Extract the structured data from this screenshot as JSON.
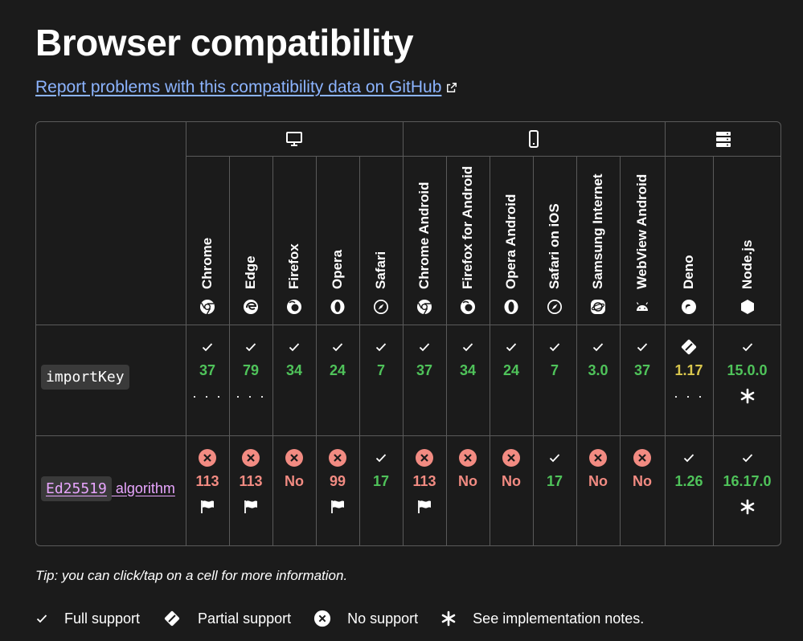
{
  "page_title": "Browser compatibility",
  "report_link": "Report problems with this compatibility data on GitHub",
  "platforms": [
    {
      "name": "desktop",
      "icon": "desktop-icon"
    },
    {
      "name": "mobile",
      "icon": "mobile-icon"
    },
    {
      "name": "server",
      "icon": "server-icon"
    }
  ],
  "browsers": [
    {
      "name": "Chrome",
      "icon": "chrome-icon"
    },
    {
      "name": "Edge",
      "icon": "edge-icon"
    },
    {
      "name": "Firefox",
      "icon": "firefox-icon"
    },
    {
      "name": "Opera",
      "icon": "opera-icon"
    },
    {
      "name": "Safari",
      "icon": "safari-icon"
    },
    {
      "name": "Chrome Android",
      "icon": "chrome-icon"
    },
    {
      "name": "Firefox for Android",
      "icon": "firefox-icon"
    },
    {
      "name": "Opera Android",
      "icon": "opera-icon"
    },
    {
      "name": "Safari on iOS",
      "icon": "safari-icon"
    },
    {
      "name": "Samsung Internet",
      "icon": "samsung-internet-icon"
    },
    {
      "name": "WebView Android",
      "icon": "android-icon"
    },
    {
      "name": "Deno",
      "icon": "deno-icon"
    },
    {
      "name": "Node.js",
      "icon": "nodejs-icon"
    }
  ],
  "features": [
    {
      "code": "importKey",
      "suffix": "",
      "cells": [
        {
          "status": "yes",
          "version": "37",
          "note": "more"
        },
        {
          "status": "yes",
          "version": "79",
          "note": "more"
        },
        {
          "status": "yes",
          "version": "34",
          "note": ""
        },
        {
          "status": "yes",
          "version": "24",
          "note": ""
        },
        {
          "status": "yes",
          "version": "7",
          "note": ""
        },
        {
          "status": "yes",
          "version": "37",
          "note": ""
        },
        {
          "status": "yes",
          "version": "34",
          "note": ""
        },
        {
          "status": "yes",
          "version": "24",
          "note": ""
        },
        {
          "status": "yes",
          "version": "7",
          "note": ""
        },
        {
          "status": "yes",
          "version": "3.0",
          "note": ""
        },
        {
          "status": "yes",
          "version": "37",
          "note": ""
        },
        {
          "status": "partial",
          "version": "1.17",
          "note": "more"
        },
        {
          "status": "yes",
          "version": "15.0.0",
          "note": "asterisk"
        }
      ]
    },
    {
      "code": "Ed25519",
      "suffix": " algorithm",
      "cells": [
        {
          "status": "no",
          "version": "113",
          "note": "flag"
        },
        {
          "status": "no",
          "version": "113",
          "note": "flag"
        },
        {
          "status": "no",
          "version": "No",
          "note": ""
        },
        {
          "status": "no",
          "version": "99",
          "note": "flag"
        },
        {
          "status": "yes",
          "version": "17",
          "note": ""
        },
        {
          "status": "no",
          "version": "113",
          "note": "flag"
        },
        {
          "status": "no",
          "version": "No",
          "note": ""
        },
        {
          "status": "no",
          "version": "No",
          "note": ""
        },
        {
          "status": "yes",
          "version": "17",
          "note": ""
        },
        {
          "status": "no",
          "version": "No",
          "note": ""
        },
        {
          "status": "no",
          "version": "No",
          "note": ""
        },
        {
          "status": "yes",
          "version": "1.26",
          "note": ""
        },
        {
          "status": "yes",
          "version": "16.17.0",
          "note": "asterisk"
        }
      ]
    }
  ],
  "tip": "Tip: you can click/tap on a cell for more information.",
  "legend": [
    {
      "icon": "check-icon",
      "label": "Full support"
    },
    {
      "icon": "partial-icon",
      "label": "Partial support"
    },
    {
      "icon": "no-support-icon",
      "label": "No support"
    },
    {
      "icon": "asterisk-icon",
      "label": "See implementation notes."
    }
  ],
  "more_glyph": "· · ·",
  "colors": {
    "yes": "#4fc35a",
    "no": "#f28b82",
    "partial": "#d9c64d",
    "link": "#8cb4ff",
    "feature_link": "#e9a6ff"
  }
}
